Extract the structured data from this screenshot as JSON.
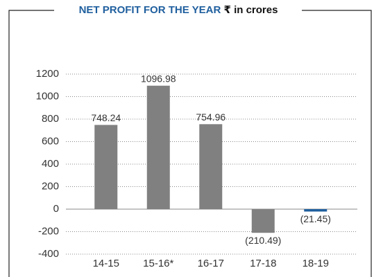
{
  "chart_data": {
    "type": "bar",
    "title": "NET PROFIT FOR THE YEAR",
    "subtitle": "₹ in crores",
    "categories": [
      "14-15",
      "15-16*",
      "16-17",
      "17-18",
      "18-19"
    ],
    "values": [
      748.24,
      1096.98,
      754.96,
      -210.49,
      -21.45
    ],
    "value_labels": [
      "748.24",
      "1096.98",
      "754.96",
      "(210.49)",
      "(21.45)"
    ],
    "colors": [
      "#808080",
      "#808080",
      "#808080",
      "#808080",
      "#1f5f9e"
    ],
    "ylim": [
      -400,
      1200
    ],
    "yticks": [
      -400,
      -200,
      0,
      200,
      400,
      600,
      800,
      1000,
      1200
    ],
    "grid": true
  }
}
